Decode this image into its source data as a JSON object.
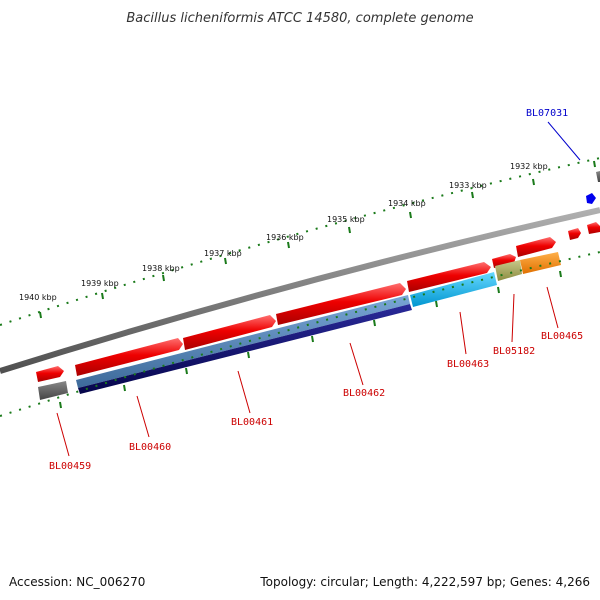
{
  "title": "Bacillus licheniformis ATCC 14580, complete genome",
  "footer": {
    "accession": "Accession: NC_006270",
    "topology": "Topology: circular; Length: 4,222,597 bp; Genes: 4,266"
  },
  "ticks": [
    "1940 kbp",
    "1939 kbp",
    "1938 kbp",
    "1937 kbp",
    "1936 kbp",
    "1935 kbp",
    "1934 kbp",
    "1933 kbp",
    "1932 kbp"
  ],
  "genes": [
    {
      "id": "BL00459",
      "color": "#cc0000"
    },
    {
      "id": "BL00460",
      "color": "#cc0000"
    },
    {
      "id": "BL00461",
      "color": "#cc0000"
    },
    {
      "id": "BL00462",
      "color": "#cc0000"
    },
    {
      "id": "BL00463",
      "color": "#cc0000"
    },
    {
      "id": "BL05182",
      "color": "#cc0000"
    },
    {
      "id": "BL00465",
      "color": "#cc0000"
    },
    {
      "id": "BL07031",
      "color": "#0000cc"
    }
  ],
  "colors": {
    "backbone": "#808080",
    "tick": "#1a7a1a",
    "gene_forward": "#e60000",
    "steel_blue": "#4a7fb5",
    "navy": "#0a0a6e",
    "cyan": "#00b8f0",
    "olive": "#a6a65a",
    "orange": "#ff8c00",
    "gray_box": "#666666",
    "blue_marker": "#0000ee"
  }
}
